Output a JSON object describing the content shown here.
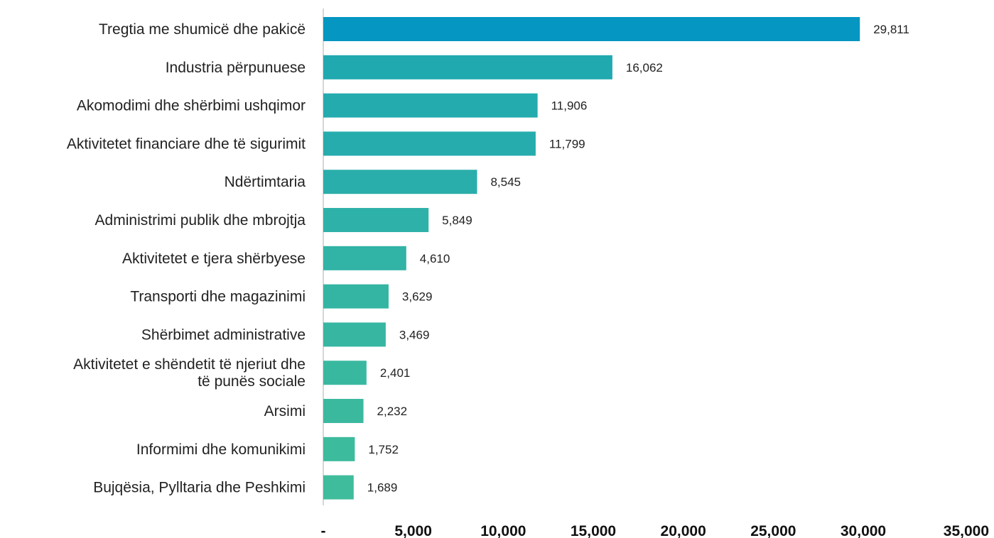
{
  "chart_data": {
    "type": "bar",
    "orientation": "horizontal",
    "categories": [
      [
        "Tregtia me shumicë dhe pakicë"
      ],
      [
        "Industria përpunuese"
      ],
      [
        "Akomodimi dhe shërbimi ushqimor"
      ],
      [
        "Aktivitetet financiare dhe të sigurimit"
      ],
      [
        "Ndërtimtaria"
      ],
      [
        "Administrimi publik dhe mbrojtja"
      ],
      [
        "Aktivitetet e tjera shërbyese"
      ],
      [
        "Transporti dhe magazinimi"
      ],
      [
        "Shërbimet administrative"
      ],
      [
        "Aktivitetet e shëndetit të njeriut dhe",
        "të punës sociale"
      ],
      [
        "Arsimi"
      ],
      [
        "Informimi dhe komunikimi"
      ],
      [
        "Bujqësia, Pylltaria dhe Peshkimi"
      ]
    ],
    "values": [
      29811,
      16062,
      11906,
      11799,
      8545,
      5849,
      4610,
      3629,
      3469,
      2401,
      2232,
      1752,
      1689
    ],
    "value_labels": [
      "29,811",
      "16,062",
      "11,906",
      "11,799",
      "8,545",
      "5,849",
      "4,610",
      "3,629",
      "3,469",
      "2,401",
      "2,232",
      "1,752",
      "1,689"
    ],
    "xlim": [
      0,
      35000
    ],
    "x_ticks": [
      0,
      5000,
      10000,
      15000,
      20000,
      25000,
      30000,
      35000
    ],
    "x_tick_labels": [
      "-",
      "5,000",
      "10,000",
      "15,000",
      "20,000",
      "25,000",
      "30,000",
      "35,000"
    ],
    "title": "",
    "xlabel": "",
    "ylabel": "",
    "grid": false,
    "legend": "none",
    "colors": [
      "#0596C2",
      "#21A9B0",
      "#24ABAE",
      "#26ACAD",
      "#2AAEAB",
      "#2EB1A8",
      "#31B3A6",
      "#34B5A3",
      "#37B6A2",
      "#39B8A0",
      "#3BB99E",
      "#3DBB9D",
      "#3FBC9B"
    ],
    "axis_color": "#C8C8C8"
  }
}
